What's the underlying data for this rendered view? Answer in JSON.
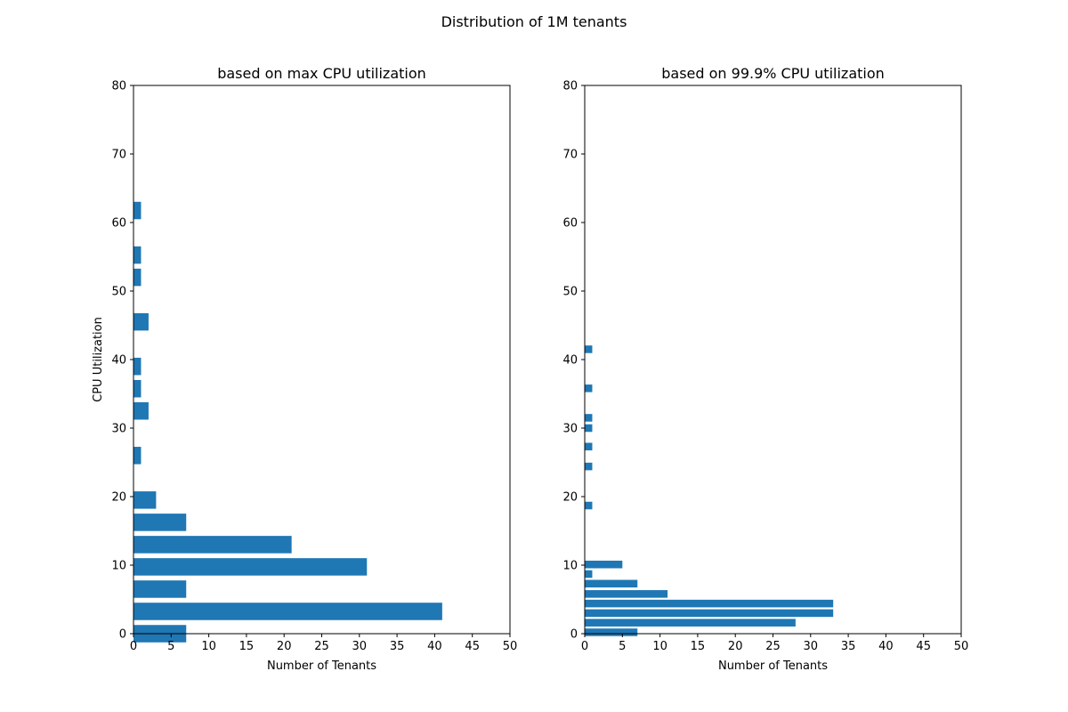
{
  "suptitle": "Distribution of 1M tenants",
  "chart_data": [
    {
      "type": "bar",
      "orientation": "horizontal",
      "title": "based on max CPU utilization",
      "xlabel": "Number of Tenants",
      "ylabel": "CPU Utilization",
      "xlim": [
        0,
        50
      ],
      "ylim": [
        0,
        80
      ],
      "xticks": [
        0,
        5,
        10,
        15,
        20,
        25,
        30,
        35,
        40,
        45,
        50
      ],
      "yticks": [
        0,
        10,
        20,
        30,
        40,
        50,
        60,
        70,
        80
      ],
      "bin_width": 3.25,
      "bars": [
        {
          "y": 0.0,
          "value": 7
        },
        {
          "y": 3.25,
          "value": 41
        },
        {
          "y": 6.5,
          "value": 7
        },
        {
          "y": 9.75,
          "value": 31
        },
        {
          "y": 13.0,
          "value": 21
        },
        {
          "y": 16.25,
          "value": 7
        },
        {
          "y": 19.5,
          "value": 3
        },
        {
          "y": 26.0,
          "value": 1
        },
        {
          "y": 32.5,
          "value": 2
        },
        {
          "y": 35.75,
          "value": 1
        },
        {
          "y": 39.0,
          "value": 1
        },
        {
          "y": 45.5,
          "value": 2
        },
        {
          "y": 52.0,
          "value": 1
        },
        {
          "y": 55.25,
          "value": 1
        },
        {
          "y": 61.75,
          "value": 1
        }
      ],
      "color": "#1f77b4"
    },
    {
      "type": "bar",
      "orientation": "horizontal",
      "title": "based on 99.9% CPU utilization",
      "xlabel": "Number of Tenants",
      "ylabel": "",
      "xlim": [
        0,
        50
      ],
      "ylim": [
        0,
        80
      ],
      "xticks": [
        0,
        5,
        10,
        15,
        20,
        25,
        30,
        35,
        40,
        45,
        50
      ],
      "yticks": [
        0,
        10,
        20,
        30,
        40,
        50,
        60,
        70,
        80
      ],
      "bin_width": 1.42,
      "bars": [
        {
          "y": 0.2,
          "value": 7
        },
        {
          "y": 1.6,
          "value": 28
        },
        {
          "y": 3.0,
          "value": 33
        },
        {
          "y": 4.4,
          "value": 33
        },
        {
          "y": 5.8,
          "value": 11
        },
        {
          "y": 7.3,
          "value": 7
        },
        {
          "y": 8.7,
          "value": 1
        },
        {
          "y": 10.1,
          "value": 5
        },
        {
          "y": 18.7,
          "value": 1
        },
        {
          "y": 24.4,
          "value": 1
        },
        {
          "y": 27.3,
          "value": 1
        },
        {
          "y": 30.0,
          "value": 1
        },
        {
          "y": 31.5,
          "value": 1
        },
        {
          "y": 35.8,
          "value": 1
        },
        {
          "y": 41.5,
          "value": 1
        }
      ],
      "color": "#1f77b4"
    }
  ]
}
